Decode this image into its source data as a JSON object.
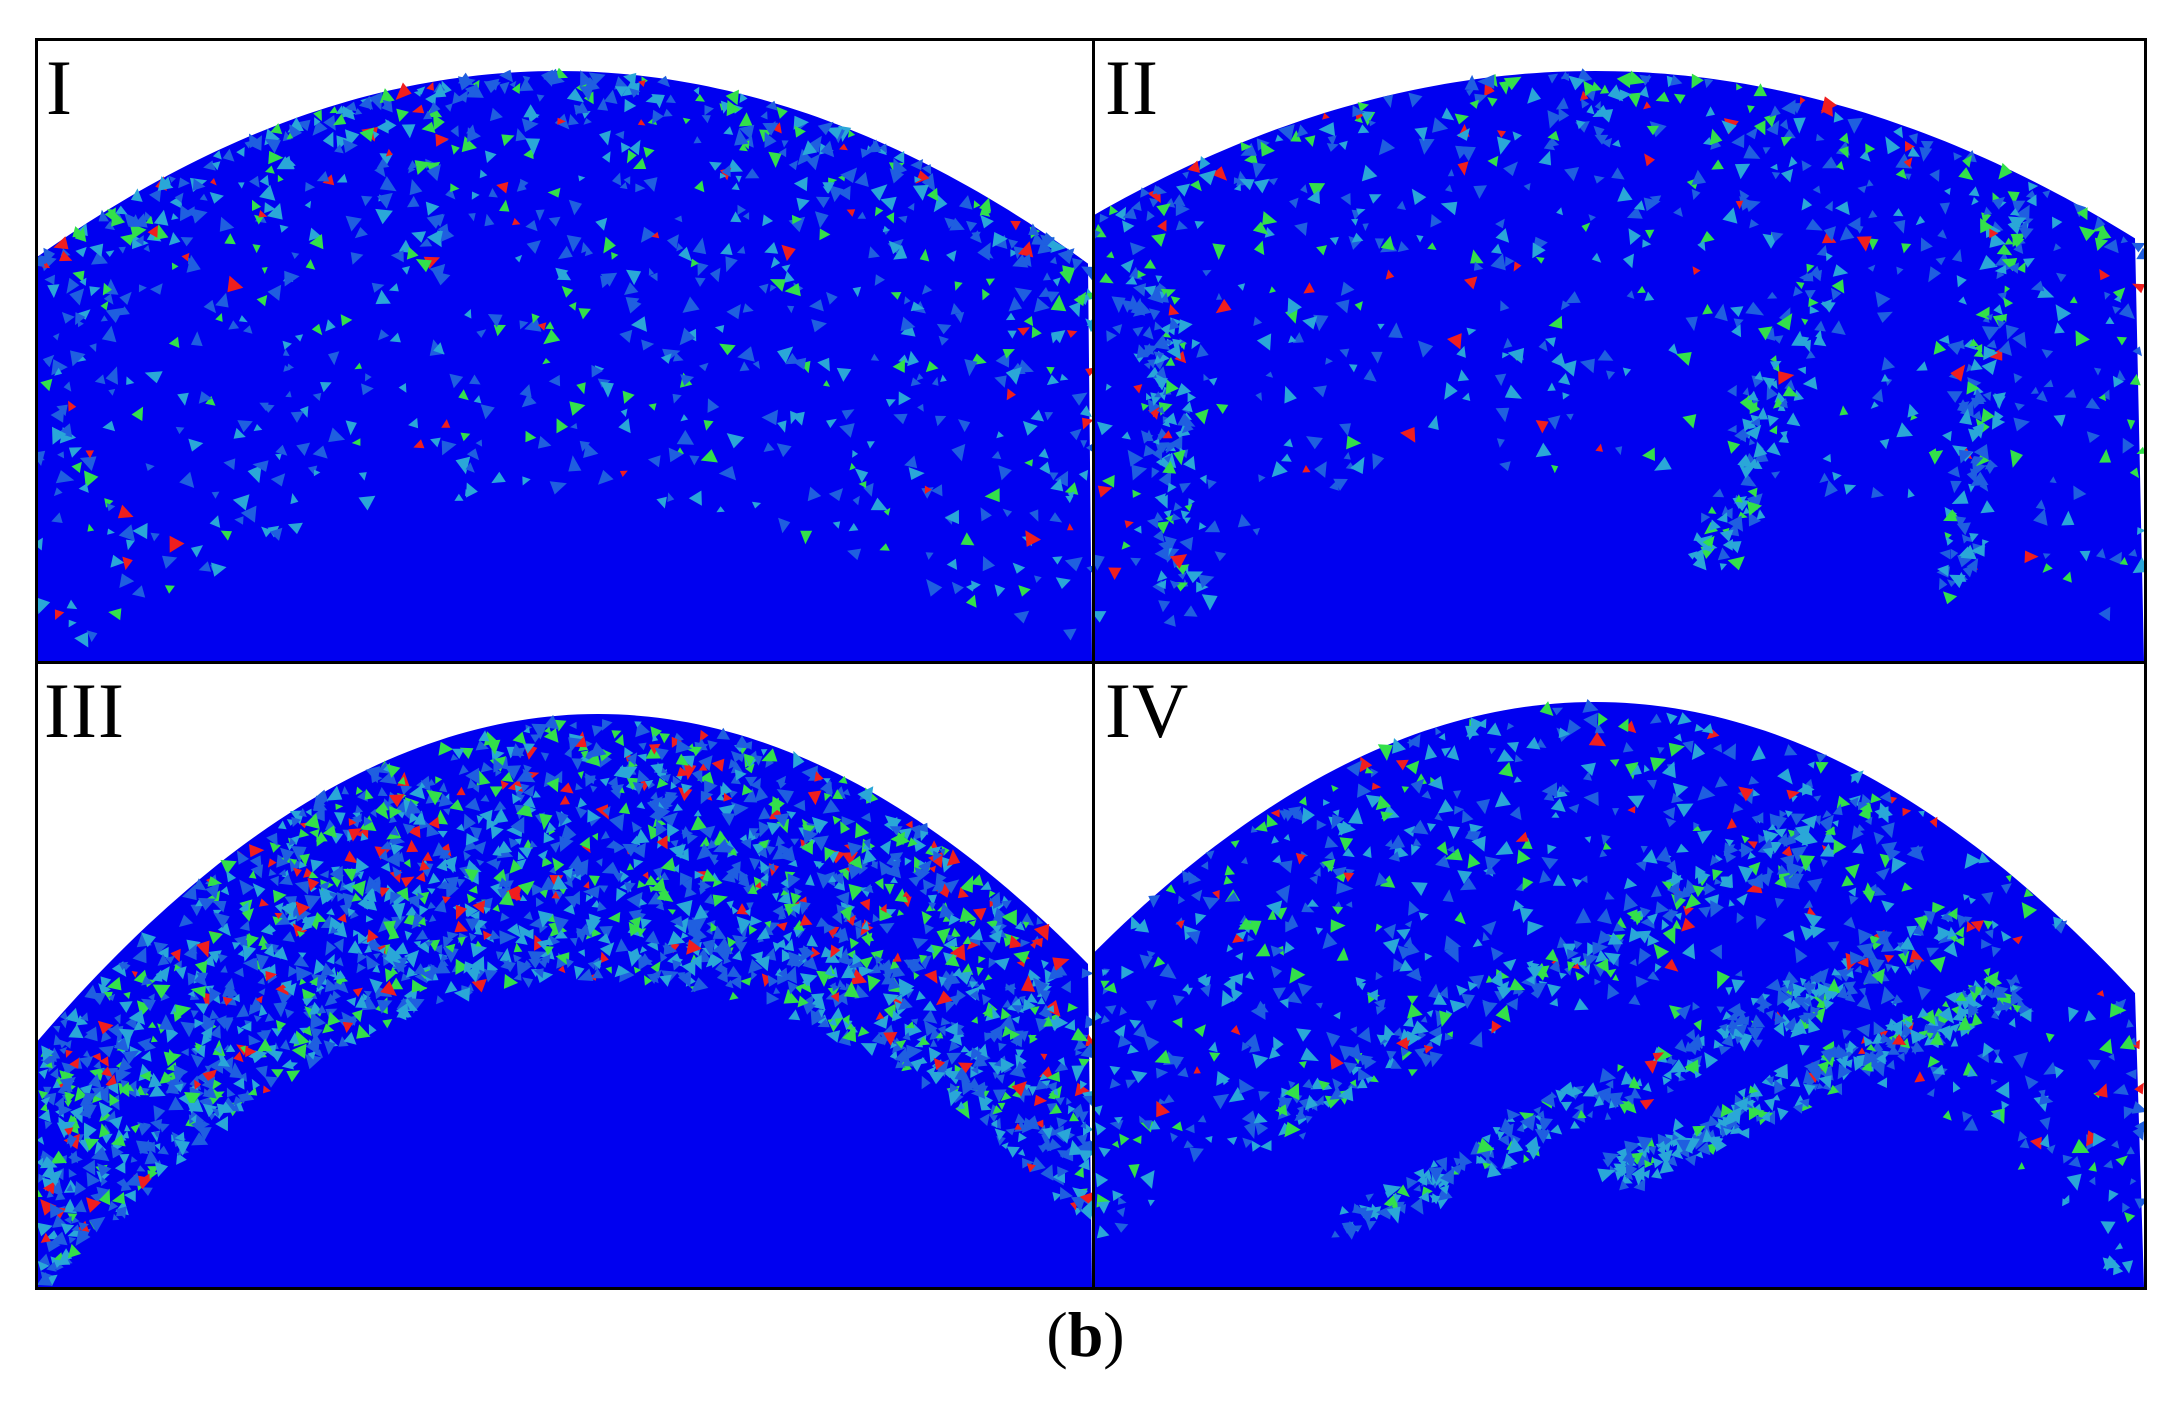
{
  "panels": [
    {
      "id": "p1",
      "label": "I"
    },
    {
      "id": "p2",
      "label": "II"
    },
    {
      "id": "p3",
      "label": "III"
    },
    {
      "id": "p4",
      "label": "IV"
    }
  ],
  "caption": {
    "open": "(",
    "letter": "b",
    "close": ")"
  },
  "colors": {
    "background": "#0000f0",
    "scatter_blue": "#1f5fe0",
    "scatter_cyan": "#2aa7d8",
    "scatter_green": "#33e04a",
    "scatter_red": "#f01e1e",
    "frame": "#000000"
  }
}
